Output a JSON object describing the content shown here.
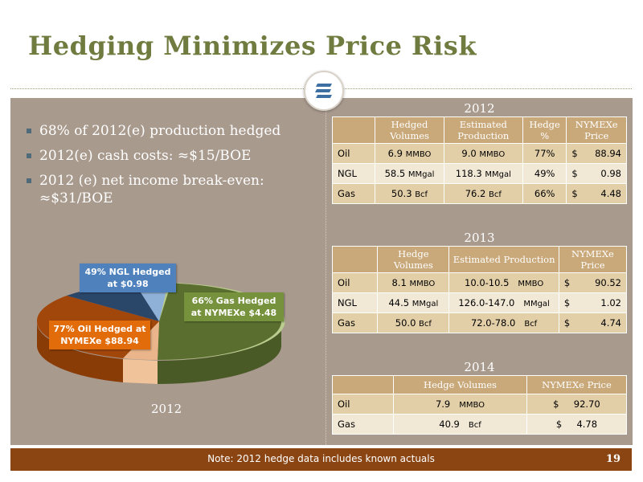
{
  "title": "Hedging Minimizes Price Risk",
  "bullets": [
    "68% of 2012(e) production hedged",
    "2012(e) cash costs: ≈$15/BOE",
    "2012 (e) net income break-even: ≈$31/BOE"
  ],
  "pie": {
    "caption": "2012",
    "labels": {
      "ngl": "49% NGL Hedged at $0.98",
      "gas": "66% Gas Hedged at NYMEXe $4.48",
      "oil": "77% Oil Hedged at NYMEXe $88.94"
    },
    "colors": {
      "gas_dark": "#4a5a27",
      "gas_light": "#b9cc8e",
      "oil_dark": "#8a3c07",
      "oil_light": "#eab58a",
      "ngl_dark": "#2a4669",
      "ngl_light": "#8fb1d8",
      "label_ngl": "#4f81bd",
      "label_gas": "#76923c",
      "label_oil": "#e26b0a"
    }
  },
  "tables": {
    "y2012": {
      "year": "2012",
      "headers": [
        "",
        "Hedged Volumes",
        "Estimated Production",
        "Hedge %",
        "NYMEXe Price"
      ],
      "rows": [
        {
          "product": "Oil",
          "vol": "6.9",
          "vol_unit": "MMBO",
          "prod": "9.0",
          "prod_unit": "MMBO",
          "pct": "77%",
          "cur": "$",
          "price": "88.94"
        },
        {
          "product": "NGL",
          "vol": "58.5",
          "vol_unit": "MMgal",
          "prod": "118.3",
          "prod_unit": "MMgal",
          "pct": "49%",
          "cur": "$",
          "price": "0.98"
        },
        {
          "product": "Gas",
          "vol": "50.3",
          "vol_unit": "Bcf",
          "prod": "76.2",
          "prod_unit": "Bcf",
          "pct": "66%",
          "cur": "$",
          "price": "4.48"
        }
      ]
    },
    "y2013": {
      "year": "2013",
      "headers": [
        "",
        "Hedge Volumes",
        "Estimated Production",
        "NYMEXe Price"
      ],
      "rows": [
        {
          "product": "Oil",
          "vol": "8.1",
          "vol_unit": "MMBO",
          "prod": "10.0-10.5",
          "prod_unit": "MMBO",
          "cur": "$",
          "price": "90.52"
        },
        {
          "product": "NGL",
          "vol": "44.5",
          "vol_unit": "MMgal",
          "prod": "126.0-147.0",
          "prod_unit": "MMgal",
          "cur": "$",
          "price": "1.02"
        },
        {
          "product": "Gas",
          "vol": "50.0",
          "vol_unit": "Bcf",
          "prod": "72.0-78.0",
          "prod_unit": "Bcf",
          "cur": "$",
          "price": "4.74"
        }
      ]
    },
    "y2014": {
      "year": "2014",
      "headers": [
        "",
        "Hedge Volumes",
        "NYMEXe Price"
      ],
      "rows": [
        {
          "product": "Oil",
          "vol": "7.9",
          "vol_unit": "MMBO",
          "cur": "$",
          "price": "92.70"
        },
        {
          "product": "Gas",
          "vol": "40.9",
          "vol_unit": "Bcf",
          "cur": "$",
          "price": "4.78"
        }
      ]
    }
  },
  "footer": {
    "note": "Note: 2012 hedge data includes known actuals",
    "page_number": "19"
  }
}
